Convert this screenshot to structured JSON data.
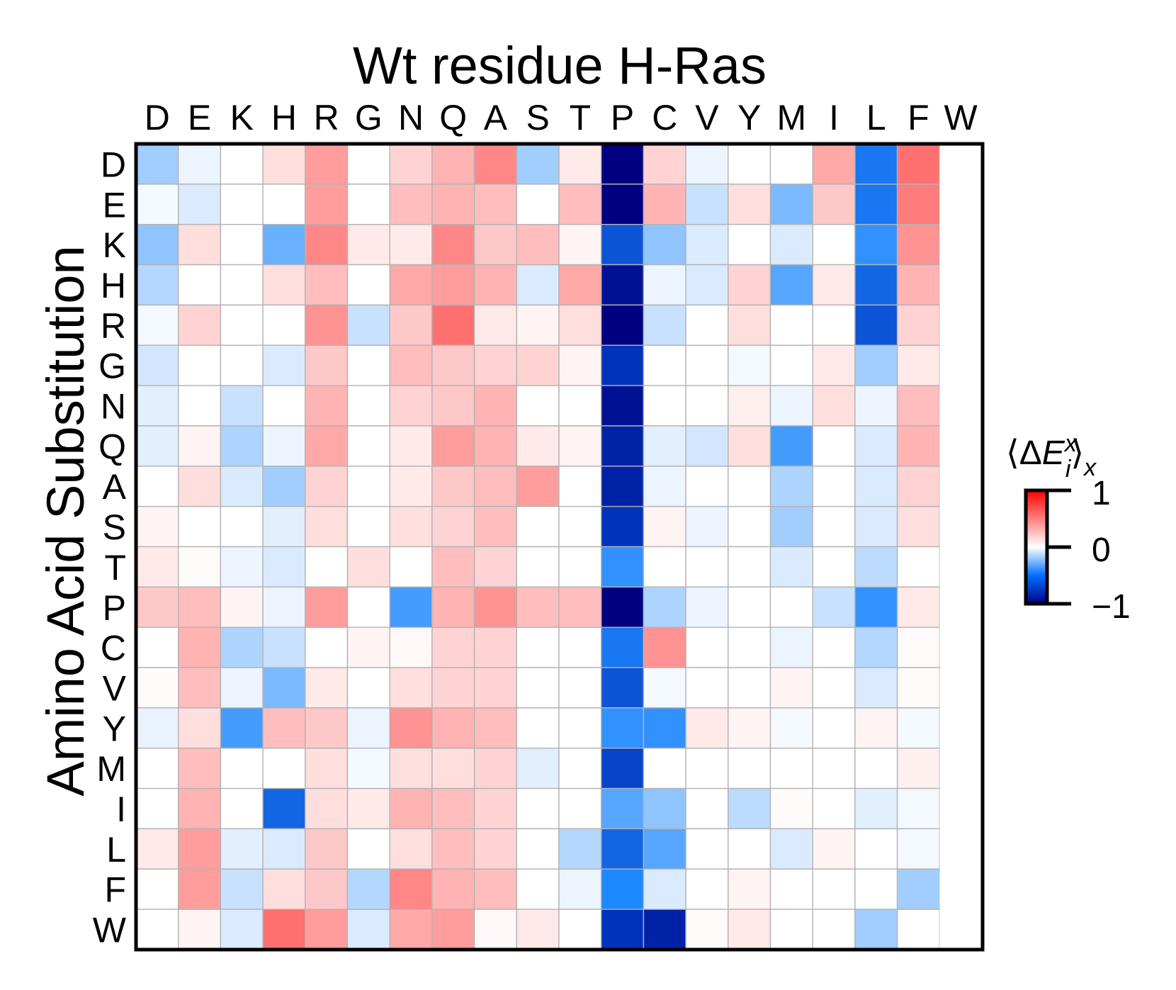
{
  "chart_data": {
    "type": "heatmap",
    "title": "Wt residue H-Ras",
    "xlabel": "",
    "ylabel": "Amino Acid Substitution",
    "x_categories": [
      "D",
      "E",
      "K",
      "H",
      "R",
      "G",
      "N",
      "Q",
      "A",
      "S",
      "T",
      "P",
      "C",
      "V",
      "Y",
      "M",
      "I",
      "L",
      "F",
      "W"
    ],
    "y_categories": [
      "D",
      "E",
      "K",
      "H",
      "R",
      "G",
      "N",
      "Q",
      "A",
      "S",
      "T",
      "P",
      "C",
      "V",
      "Y",
      "M",
      "I",
      "L",
      "F",
      "W"
    ],
    "values": [
      [
        -0.25,
        -0.05,
        0,
        0.15,
        0.45,
        0,
        0.2,
        0.35,
        0.55,
        -0.25,
        0.1,
        -1,
        0.2,
        -0.05,
        0,
        0,
        0.4,
        -0.65,
        0.65,
        null
      ],
      [
        -0.03,
        -0.1,
        0,
        0,
        0.45,
        0,
        0.3,
        0.35,
        0.3,
        0,
        0.3,
        -1,
        0.35,
        -0.15,
        0.15,
        -0.35,
        0.25,
        -0.65,
        0.6,
        null
      ],
      [
        -0.3,
        0.15,
        0,
        -0.4,
        0.55,
        0.1,
        0.1,
        0.55,
        0.25,
        0.3,
        0.05,
        -0.75,
        -0.3,
        -0.1,
        0,
        -0.1,
        0,
        -0.55,
        0.5,
        null
      ],
      [
        -0.2,
        0,
        0,
        0.15,
        0.3,
        0,
        0.4,
        0.45,
        0.35,
        -0.1,
        0.4,
        -0.95,
        -0.05,
        -0.1,
        0.2,
        -0.45,
        0.1,
        -0.7,
        0.35,
        null
      ],
      [
        -0.03,
        0.2,
        0,
        0,
        0.5,
        -0.15,
        0.25,
        0.65,
        0.1,
        0.05,
        0.15,
        -1,
        -0.15,
        0,
        0.15,
        0,
        0,
        -0.75,
        0.2,
        null
      ],
      [
        -0.12,
        0,
        0,
        -0.1,
        0.25,
        0,
        0.3,
        0.25,
        0.2,
        0.2,
        0.05,
        -0.85,
        0,
        0,
        -0.03,
        0,
        0.1,
        -0.25,
        0.1,
        null
      ],
      [
        -0.08,
        0,
        -0.15,
        0,
        0.35,
        0,
        0.2,
        0.25,
        0.35,
        0,
        0,
        -0.95,
        0,
        0,
        0.08,
        -0.05,
        0.15,
        -0.05,
        0.3,
        null
      ],
      [
        -0.08,
        0.05,
        -0.22,
        -0.05,
        0.4,
        0,
        0.1,
        0.45,
        0.35,
        0.1,
        0.05,
        -0.9,
        -0.08,
        -0.12,
        0.15,
        -0.5,
        0,
        -0.1,
        0.35,
        null
      ],
      [
        0,
        0.15,
        -0.1,
        -0.25,
        0.2,
        0,
        0.1,
        0.25,
        0.3,
        0.45,
        0,
        -0.9,
        -0.05,
        0,
        0,
        -0.22,
        0,
        -0.1,
        0.2,
        null
      ],
      [
        0.05,
        0,
        0,
        -0.08,
        0.15,
        0,
        0.15,
        0.2,
        0.3,
        0,
        0,
        -0.85,
        0.05,
        -0.05,
        0,
        -0.25,
        0,
        -0.1,
        0.15,
        null
      ],
      [
        0.1,
        0.02,
        -0.05,
        -0.1,
        0,
        0.15,
        0,
        0.3,
        0.2,
        0,
        0,
        -0.55,
        0,
        0,
        0,
        -0.1,
        0,
        -0.18,
        0,
        null
      ],
      [
        0.25,
        0.3,
        0.05,
        -0.05,
        0.45,
        0,
        -0.5,
        0.35,
        0.5,
        0.3,
        0.3,
        -1,
        -0.22,
        -0.05,
        0,
        0,
        -0.15,
        -0.55,
        0.1,
        null
      ],
      [
        0,
        0.35,
        -0.22,
        -0.15,
        0,
        0.05,
        0.03,
        0.2,
        0.2,
        0,
        0,
        -0.65,
        0.5,
        0,
        0,
        -0.05,
        0,
        -0.2,
        0.02,
        null
      ],
      [
        0.02,
        0.3,
        -0.05,
        -0.35,
        0.1,
        0,
        0.15,
        0.2,
        0.2,
        0,
        0,
        -0.75,
        -0.03,
        0,
        0,
        0.05,
        0,
        -0.1,
        0.02,
        null
      ],
      [
        -0.06,
        0.15,
        -0.5,
        0.3,
        0.25,
        -0.05,
        0.5,
        0.35,
        0.3,
        0,
        0,
        -0.55,
        -0.55,
        0.1,
        0.05,
        -0.03,
        0,
        0.05,
        -0.03,
        null
      ],
      [
        0,
        0.3,
        0,
        0,
        0.15,
        -0.03,
        0.15,
        0.15,
        0.2,
        -0.08,
        0,
        -0.8,
        0,
        0,
        0,
        0,
        0,
        0,
        0.07,
        null
      ],
      [
        0,
        0.35,
        0,
        -0.7,
        0.15,
        0.1,
        0.35,
        0.3,
        0.2,
        0,
        0,
        -0.45,
        -0.3,
        0,
        -0.18,
        0.02,
        0,
        -0.08,
        -0.03,
        null
      ],
      [
        0.1,
        0.45,
        -0.08,
        -0.1,
        0.25,
        0,
        0.15,
        0.3,
        0.2,
        0,
        -0.2,
        -0.7,
        -0.45,
        0,
        0,
        -0.1,
        0.05,
        0,
        -0.03,
        null
      ],
      [
        0,
        0.45,
        -0.15,
        0.15,
        0.25,
        -0.2,
        0.55,
        0.35,
        0.3,
        0,
        -0.05,
        -0.6,
        -0.1,
        0,
        0.05,
        0,
        0,
        0,
        -0.25,
        null
      ],
      [
        0,
        0.05,
        -0.1,
        0.65,
        0.45,
        -0.1,
        0.4,
        0.45,
        0.03,
        0.1,
        0,
        -0.85,
        -0.9,
        0.02,
        0.1,
        0,
        0,
        -0.25,
        0,
        null
      ]
    ],
    "color_scale": {
      "min": -1,
      "max": 1,
      "low": "#00008b",
      "mid": "#ffffff",
      "high": "#ff0000"
    },
    "colorbar": {
      "ticks": [
        "1",
        "0",
        "−1"
      ],
      "label_sup": "x",
      "label_sub": "i",
      "label_outer": "x"
    }
  }
}
